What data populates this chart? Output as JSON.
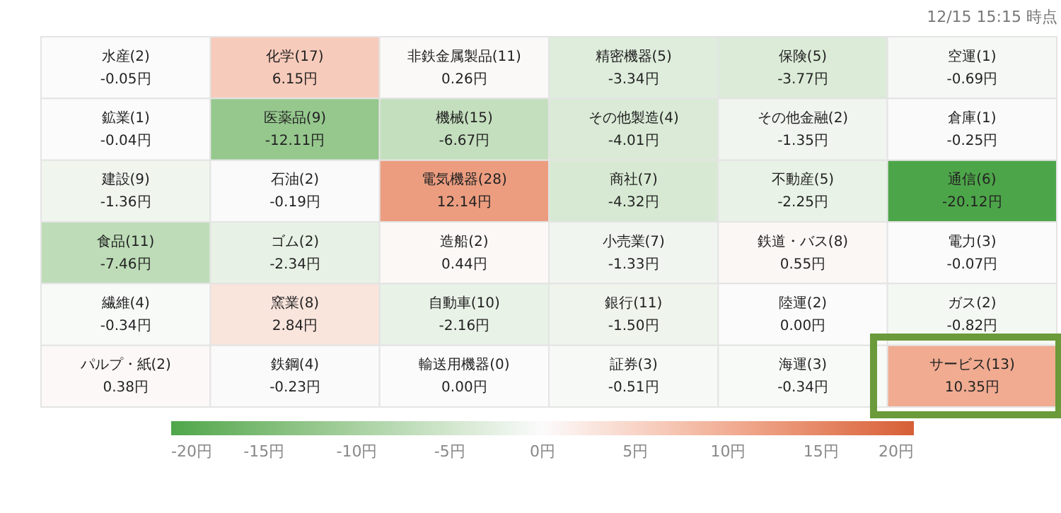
{
  "chart_data": {
    "type": "heatmap",
    "annotations": [
      "12/15 15:15 時点"
    ],
    "categories": [
      null,
      null,
      null,
      null,
      null,
      null
    ],
    "y_categories": [
      null,
      null,
      null,
      null,
      null,
      null
    ],
    "cells": [
      [
        -0.05,
        6.15,
        0.26,
        -3.34,
        -3.77,
        -0.69
      ],
      [
        -0.04,
        -12.11,
        -6.67,
        -4.01,
        -1.35,
        -0.25
      ],
      [
        -1.36,
        -0.19,
        12.14,
        -4.32,
        -2.25,
        -20.12
      ],
      [
        -7.46,
        -2.34,
        0.44,
        -1.33,
        0.55,
        -0.07
      ],
      [
        -0.34,
        2.84,
        -2.16,
        -1.5,
        0.0,
        -0.82
      ],
      [
        0.38,
        -0.23,
        0.0,
        -0.51,
        -0.34,
        10.35
      ]
    ],
    "cell_labels": [
      [
        "水産(2)\n-0.05円",
        "化学(17)\n6.15円",
        "非鉄金属製品(11)\n0.26円",
        "精密機器(5)\n-3.34円",
        "保険(5)\n-3.77円",
        "空運(1)\n-0.69円"
      ],
      [
        "鉱業(1)\n-0.04円",
        "医薬品(9)\n-12.11円",
        "機械(15)\n-6.67円",
        "その他製造(4)\n-4.01円",
        "その他金融(2)\n-1.35円",
        "倉庫(1)\n-0.25円"
      ],
      [
        "建設(9)\n-1.36円",
        "石油(2)\n-0.19円",
        "電気機器(28)\n12.14円",
        "商社(7)\n-4.32円",
        "不動産(5)\n-2.25円",
        "通信(6)\n-20.12円"
      ],
      [
        "食品(11)\n-7.46円",
        "ゴム(2)\n-2.34円",
        "造船(2)\n0.44円",
        "小売業(7)\n-1.33円",
        "鉄道・バス(8)\n0.55円",
        "電力(3)\n-0.07円"
      ],
      [
        "繊維(4)\n-0.34円",
        "窯業(8)\n2.84円",
        "自動車(10)\n-2.16円",
        "銀行(11)\n-1.50円",
        "陸運(2)\n0.00円",
        "ガス(2)\n-0.82円"
      ],
      [
        "パルプ・紙(2)\n0.38円",
        "鉄鋼(4)\n-0.23円",
        "輸送用機器(0)\n0.00円",
        "証券(3)\n-0.51円",
        "海運(3)\n-0.34円",
        "サービス(13)\n10.35円"
      ]
    ],
    "clim": [
      -20,
      20
    ],
    "cticks": [
      {
        "value": -20,
        "label": "-20円"
      },
      {
        "value": -15,
        "label": "-15円"
      },
      {
        "value": -10,
        "label": "-10円"
      },
      {
        "value": -5,
        "label": "-5円"
      },
      {
        "value": 0,
        "label": "0円"
      },
      {
        "value": 5,
        "label": "5円"
      },
      {
        "value": 10,
        "label": "10円"
      },
      {
        "value": 15,
        "label": "15円"
      },
      {
        "value": 20,
        "label": "20円"
      }
    ]
  }
}
